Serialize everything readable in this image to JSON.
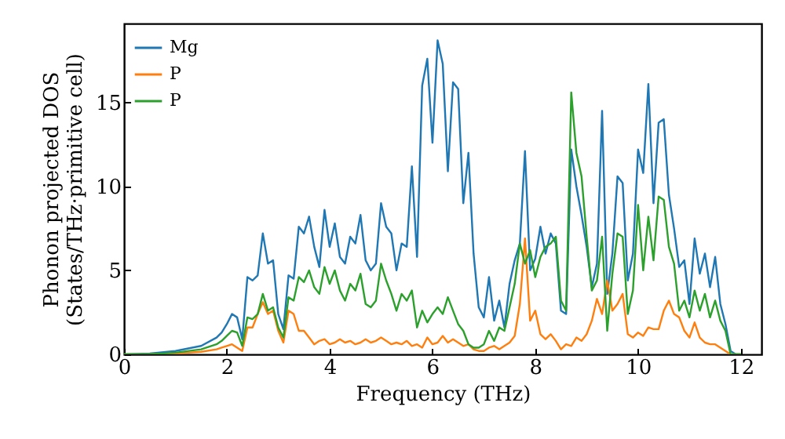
{
  "chart_data": {
    "type": "line",
    "xlabel": "Frequency (THz)",
    "ylabel": "Phonon projected DOS\n(States/THz·primitive cell)",
    "xlim": [
      0,
      12.4
    ],
    "ylim": [
      0,
      19.7
    ],
    "xticks": [
      0,
      2,
      4,
      6,
      8,
      10,
      12
    ],
    "yticks": [
      0,
      5,
      10,
      15
    ],
    "grid": false,
    "legend": "top left",
    "marker": "none",
    "line_style": "solid",
    "x": [
      0,
      0.5,
      1,
      1.5,
      1.8,
      1.9,
      2.0,
      2.1,
      2.2,
      2.3,
      2.4,
      2.5,
      2.6,
      2.7,
      2.8,
      2.9,
      3.0,
      3.1,
      3.2,
      3.3,
      3.4,
      3.5,
      3.6,
      3.7,
      3.8,
      3.9,
      4.0,
      4.1,
      4.2,
      4.3,
      4.4,
      4.5,
      4.6,
      4.7,
      4.8,
      4.9,
      5.0,
      5.1,
      5.2,
      5.3,
      5.4,
      5.5,
      5.6,
      5.7,
      5.8,
      5.9,
      6.0,
      6.1,
      6.2,
      6.3,
      6.4,
      6.5,
      6.6,
      6.7,
      6.8,
      6.9,
      7.0,
      7.1,
      7.2,
      7.3,
      7.4,
      7.5,
      7.6,
      7.7,
      7.8,
      7.9,
      8.0,
      8.1,
      8.2,
      8.3,
      8.4,
      8.5,
      8.6,
      8.7,
      8.8,
      8.9,
      9.0,
      9.1,
      9.2,
      9.3,
      9.4,
      9.5,
      9.6,
      9.7,
      9.8,
      9.9,
      10.0,
      10.1,
      10.2,
      10.3,
      10.4,
      10.5,
      10.6,
      10.7,
      10.8,
      10.9,
      11.0,
      11.1,
      11.2,
      11.3,
      11.4,
      11.5,
      11.6,
      11.7,
      11.8,
      11.9,
      12.0
    ],
    "series": [
      {
        "name": "Mg",
        "color": "#1f77b4",
        "values": [
          0,
          0.05,
          0.2,
          0.5,
          1.0,
          1.3,
          1.8,
          2.4,
          2.2,
          0.9,
          4.6,
          4.4,
          4.7,
          7.2,
          5.4,
          5.6,
          2.4,
          1.5,
          4.7,
          4.5,
          7.6,
          7.2,
          8.2,
          6.4,
          5.2,
          8.6,
          6.4,
          7.8,
          5.8,
          5.4,
          7.0,
          6.6,
          8.3,
          5.6,
          5.0,
          5.4,
          9.0,
          7.6,
          7.2,
          5.0,
          6.6,
          6.4,
          11.2,
          5.8,
          16.0,
          17.6,
          12.6,
          18.7,
          17.3,
          10.9,
          16.2,
          15.8,
          9.0,
          12.0,
          6.0,
          2.8,
          2.2,
          4.6,
          2.0,
          3.2,
          1.6,
          4.2,
          5.6,
          6.6,
          12.1,
          5.0,
          5.7,
          7.6,
          6.0,
          7.2,
          6.6,
          2.6,
          2.4,
          12.2,
          10.0,
          8.3,
          6.4,
          4.0,
          5.4,
          14.5,
          3.6,
          6.0,
          10.6,
          10.2,
          4.4,
          6.0,
          12.2,
          10.8,
          16.1,
          9.0,
          13.8,
          14.0,
          9.5,
          7.5,
          5.2,
          5.6,
          3.0,
          6.9,
          4.8,
          6.0,
          4.0,
          5.8,
          3.0,
          1.8,
          0.2,
          0,
          0
        ]
      },
      {
        "name": "P",
        "color": "#ff7f0e",
        "values": [
          0,
          0,
          0.05,
          0.15,
          0.3,
          0.4,
          0.5,
          0.6,
          0.4,
          0.2,
          1.6,
          1.6,
          2.4,
          3.1,
          2.4,
          2.6,
          1.4,
          0.7,
          2.6,
          2.4,
          1.4,
          1.4,
          1.0,
          0.6,
          0.8,
          0.9,
          0.6,
          0.7,
          0.9,
          0.7,
          0.8,
          0.6,
          0.7,
          0.9,
          0.7,
          0.8,
          1.0,
          0.8,
          0.6,
          0.7,
          0.6,
          0.8,
          0.5,
          0.6,
          0.4,
          1.0,
          0.6,
          0.7,
          1.1,
          0.7,
          0.9,
          0.7,
          0.5,
          0.6,
          0.3,
          0.2,
          0.2,
          0.4,
          0.5,
          0.3,
          0.5,
          0.7,
          1.1,
          3.0,
          6.9,
          2.0,
          2.6,
          1.2,
          0.9,
          1.2,
          0.8,
          0.3,
          0.6,
          0.5,
          1.0,
          0.8,
          1.2,
          2.0,
          3.3,
          2.4,
          4.4,
          2.6,
          3.0,
          3.6,
          1.2,
          1.0,
          1.3,
          1.1,
          1.6,
          1.5,
          1.5,
          2.6,
          3.2,
          2.4,
          2.2,
          1.4,
          1.0,
          1.9,
          1.0,
          0.7,
          0.6,
          0.6,
          0.4,
          0.2,
          0,
          0,
          0
        ]
      },
      {
        "name": "P",
        "color": "#2ca02c",
        "values": [
          0,
          0,
          0.1,
          0.3,
          0.6,
          0.8,
          1.1,
          1.4,
          1.3,
          0.5,
          2.2,
          2.1,
          2.4,
          3.6,
          2.6,
          2.8,
          1.6,
          1.0,
          3.4,
          3.2,
          4.6,
          4.3,
          5.0,
          4.0,
          3.6,
          5.2,
          4.2,
          5.0,
          3.8,
          3.2,
          4.2,
          3.8,
          4.8,
          3.0,
          2.8,
          3.2,
          5.4,
          4.4,
          3.6,
          2.6,
          3.6,
          3.2,
          3.8,
          1.6,
          2.6,
          1.9,
          2.4,
          2.8,
          2.4,
          3.4,
          2.6,
          1.8,
          1.4,
          0.6,
          0.4,
          0.4,
          0.6,
          1.4,
          0.8,
          1.6,
          1.4,
          2.8,
          4.2,
          6.6,
          5.4,
          6.2,
          4.6,
          5.8,
          6.4,
          6.6,
          7.0,
          3.2,
          2.6,
          15.6,
          12.0,
          10.6,
          7.0,
          3.8,
          4.4,
          7.0,
          1.4,
          4.8,
          7.2,
          7.0,
          2.4,
          3.8,
          8.9,
          5.0,
          8.2,
          5.6,
          9.4,
          9.2,
          6.4,
          5.4,
          2.6,
          3.2,
          2.2,
          3.8,
          2.6,
          3.6,
          2.2,
          3.2,
          2.0,
          1.4,
          0,
          0,
          0
        ]
      }
    ]
  }
}
